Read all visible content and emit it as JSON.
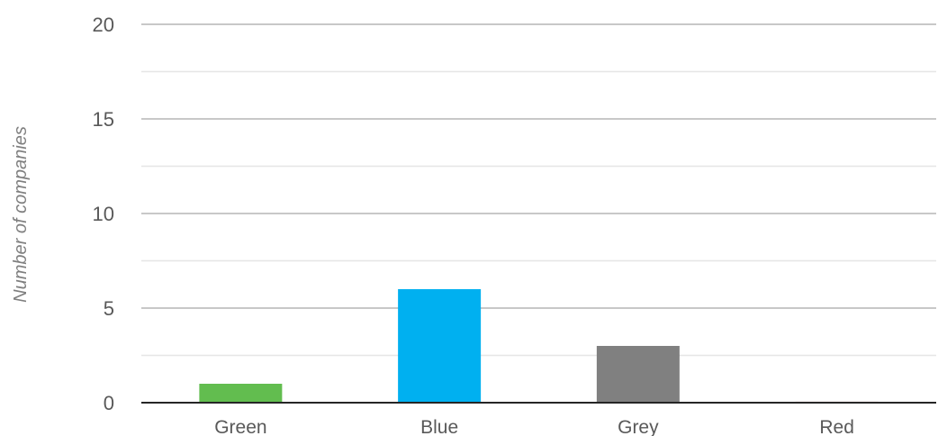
{
  "chart_data": {
    "type": "bar",
    "title": "",
    "xlabel": "",
    "ylabel": "Number of companies",
    "categories": [
      "Green",
      "Blue",
      "Grey",
      "Red"
    ],
    "values": [
      1,
      6,
      3,
      0.05
    ],
    "ylim": [
      0,
      20
    ],
    "yticks": [
      "0",
      "5",
      "10",
      "15",
      "20"
    ],
    "grid": true,
    "legend": "none",
    "colors": [
      "#62bd4f",
      "#00b0f0",
      "#808080",
      "#c0504d"
    ]
  }
}
